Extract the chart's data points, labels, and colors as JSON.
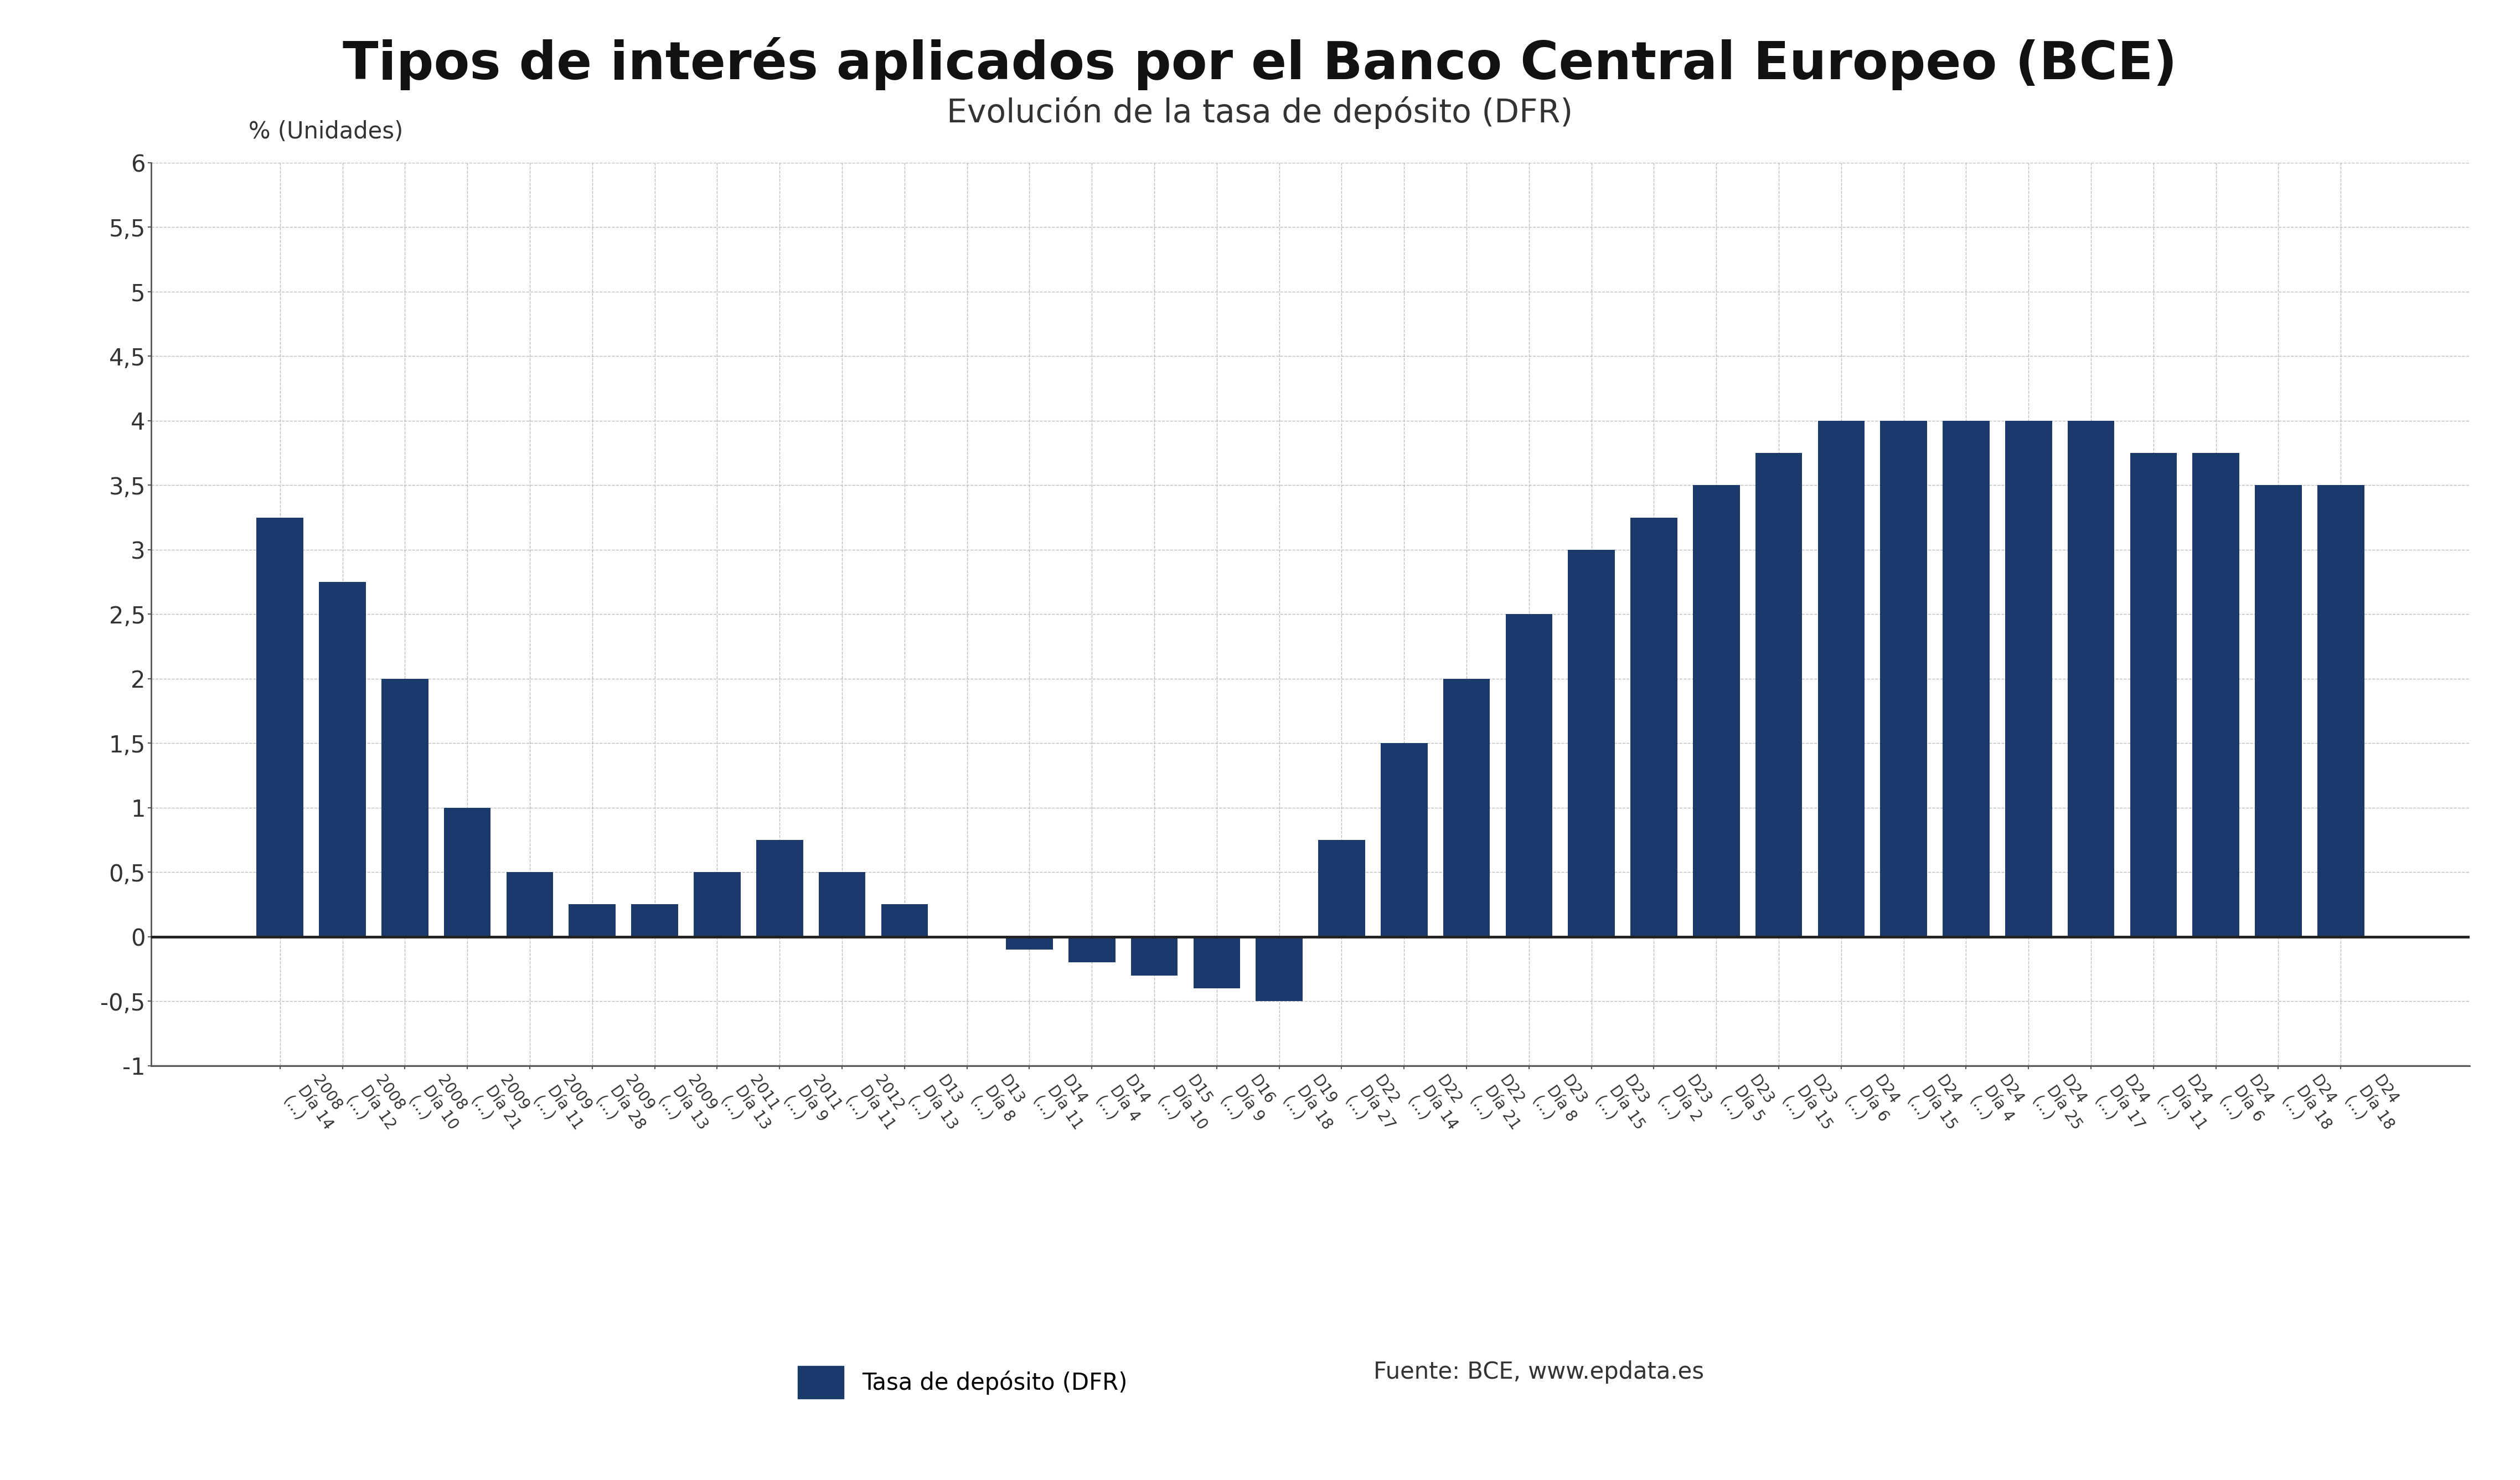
{
  "title": "Tipos de interés aplicados por el Banco Central Europeo (BCE)",
  "subtitle": "Evolución de la tasa de depósito (DFR)",
  "ylabel": "% (Unidades)",
  "legend_label": "Tasa de depósito (DFR)",
  "source_text": "Fuente: BCE, www.epdata.es",
  "bar_color": "#1a3a6b",
  "background_color": "#ffffff",
  "ylim": [
    -1,
    6
  ],
  "yticks": [
    -1,
    -0.5,
    0,
    0.5,
    1,
    1.5,
    2,
    2.5,
    3,
    3.5,
    4,
    4.5,
    5,
    5.5,
    6
  ],
  "ytick_labels": [
    "-1",
    "-0,5",
    "0",
    "0,5",
    "1",
    "1,5",
    "2",
    "2,5",
    "3",
    "3,5",
    "4",
    "4,5",
    "5",
    "5,5",
    "6"
  ],
  "xlabels_line1": [
    "2008",
    "2008",
    "2008",
    "2009",
    "2009",
    "2009",
    "2009",
    "2011",
    "2011",
    "2012",
    "D13",
    "D13",
    "D14",
    "D14",
    "D15",
    "D16",
    "D19",
    "D22",
    "D22",
    "D22",
    "D23",
    "D23",
    "D23",
    "D23",
    "D23",
    "D24",
    "D24",
    "D24",
    "D24",
    "D24",
    "D24",
    "D24",
    "D24",
    "D24"
  ],
  "xlabels_line2": [
    "Día 14",
    "Día 12",
    "Día 10",
    "Día 21",
    "Día 11",
    "Día 28",
    "Día 13",
    "Día 13",
    "Día 9",
    "Día 11",
    "Día 13",
    "Día 8",
    "Día 11",
    "Día 4",
    "Día 10",
    "Día 9",
    "Día 18",
    "Día 27",
    "Día 14",
    "Día 21",
    "Día 8",
    "Día 15",
    "Día 2",
    "Día 5",
    "Día 15",
    "Día 6",
    "Día 15",
    "Día 4",
    "Día 25",
    "Día 17",
    "Día 11",
    "Día 6",
    "Día 18",
    "Día 18"
  ],
  "values": [
    3.25,
    2.75,
    2.0,
    1.0,
    0.5,
    0.25,
    0.25,
    0.5,
    0.75,
    0.5,
    0.25,
    0.0,
    -0.1,
    -0.2,
    -0.3,
    -0.4,
    -0.5,
    0.75,
    1.5,
    2.0,
    2.5,
    3.0,
    3.25,
    3.5,
    3.75,
    4.0,
    4.0,
    4.0,
    4.0,
    4.0,
    3.75,
    3.75,
    3.5,
    3.5
  ]
}
